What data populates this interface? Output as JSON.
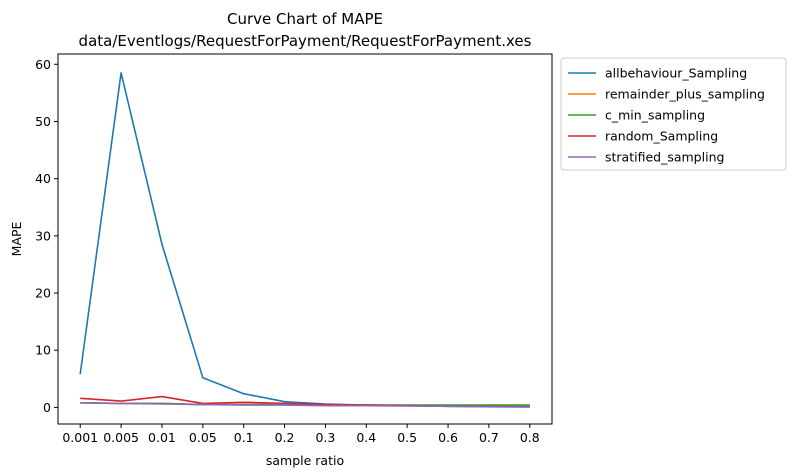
{
  "chart_data": {
    "type": "line",
    "title": "Curve Chart of MAPE",
    "subtitle": "data/Eventlogs/RequestForPayment/RequestForPayment.xes",
    "xlabel": "sample ratio",
    "ylabel": "MAPE",
    "categories": [
      "0.001",
      "0.005",
      "0.01",
      "0.05",
      "0.1",
      "0.2",
      "0.3",
      "0.4",
      "0.5",
      "0.6",
      "0.7",
      "0.8"
    ],
    "ylim": [
      -2.9,
      61.8
    ],
    "yticks": [
      0,
      10,
      20,
      30,
      40,
      50,
      60
    ],
    "grid": false,
    "legend_position": "outside-top-right",
    "series": [
      {
        "name": "allbehaviour_Sampling",
        "color": "#1f77b4",
        "values": [
          5.8,
          58.5,
          28.5,
          5.2,
          2.4,
          1.0,
          0.6,
          0.4,
          0.3,
          0.25,
          0.2,
          0.2
        ]
      },
      {
        "name": "remainder_plus_sampling",
        "color": "#ff7f0e",
        "values": [
          0.8,
          0.7,
          0.7,
          0.5,
          0.5,
          0.5,
          0.4,
          0.4,
          0.35,
          0.35,
          0.3,
          0.3
        ]
      },
      {
        "name": "c_min_sampling",
        "color": "#2ca02c",
        "values": [
          0.8,
          0.7,
          0.7,
          0.5,
          0.5,
          0.5,
          0.45,
          0.4,
          0.4,
          0.4,
          0.4,
          0.4
        ]
      },
      {
        "name": "random_Sampling",
        "color": "#d62728",
        "values": [
          1.6,
          1.1,
          1.9,
          0.7,
          0.9,
          0.7,
          0.5,
          0.4,
          0.3,
          0.2,
          0.15,
          0.1
        ]
      },
      {
        "name": "stratified_sampling",
        "color": "#9467bd",
        "values": [
          0.8,
          0.7,
          0.6,
          0.5,
          0.4,
          0.4,
          0.3,
          0.3,
          0.25,
          0.2,
          0.1,
          0.05
        ]
      }
    ]
  }
}
